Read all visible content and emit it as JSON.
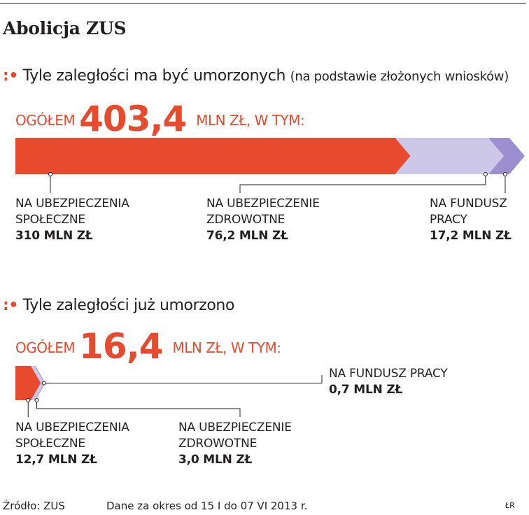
{
  "title": "Abolicja ZUS",
  "colors": {
    "social": "#e84a2e",
    "health": "#cdc8e8",
    "labour": "#9c8fcf",
    "text": "#231f20"
  },
  "chart_data": [
    {
      "type": "bar",
      "orientation": "horizontal-stacked",
      "title": "Tyle zaległości ma być umorzonych",
      "subtitle": "(na podstawie złożonych wniosków)",
      "total": {
        "prefix": "OGÓŁEM",
        "value": "403,4",
        "suffix": "MLN ZŁ, W TYM:"
      },
      "unit": "MLN ZŁ",
      "series": [
        {
          "name_line1": "NA UBEZPIECZENIA",
          "name_line2": "SPOŁECZNE",
          "value": 310,
          "value_label": "310 MLN ZŁ",
          "color": "social"
        },
        {
          "name_line1": "NA UBEZPIECZENIE",
          "name_line2": "ZDROWOTNE",
          "value": 76.2,
          "value_label": "76,2 MLN ZŁ",
          "color": "health"
        },
        {
          "name_line1": "NA FUNDUSZ",
          "name_line2": "PRACY",
          "value": 17.2,
          "value_label": "17,2 MLN ZŁ",
          "color": "labour"
        }
      ]
    },
    {
      "type": "bar",
      "orientation": "horizontal-stacked",
      "title": "Tyle zaległości już umorzono",
      "total": {
        "prefix": "OGÓŁEM",
        "value": "16,4",
        "suffix": "MLN ZŁ, W TYM:"
      },
      "unit": "MLN ZŁ",
      "series": [
        {
          "name_line1": "NA UBEZPIECZENIA",
          "name_line2": "SPOŁECZNE",
          "value": 12.7,
          "value_label": "12,7 MLN ZŁ",
          "color": "social"
        },
        {
          "name_line1": "NA UBEZPIECZENIE",
          "name_line2": "ZDROWOTNE",
          "value": 3.0,
          "value_label": "3,0 MLN ZŁ",
          "color": "health"
        },
        {
          "name_line1": "NA FUNDUSZ PRACY",
          "name_line2": "",
          "value": 0.7,
          "value_label": "0,7 MLN ZŁ",
          "color": "labour"
        }
      ]
    }
  ],
  "footer": {
    "source": "Źródło: ZUS",
    "period": "Dane za okres od 15 I do 07 VI 2013 r.",
    "author": "ŁR"
  }
}
